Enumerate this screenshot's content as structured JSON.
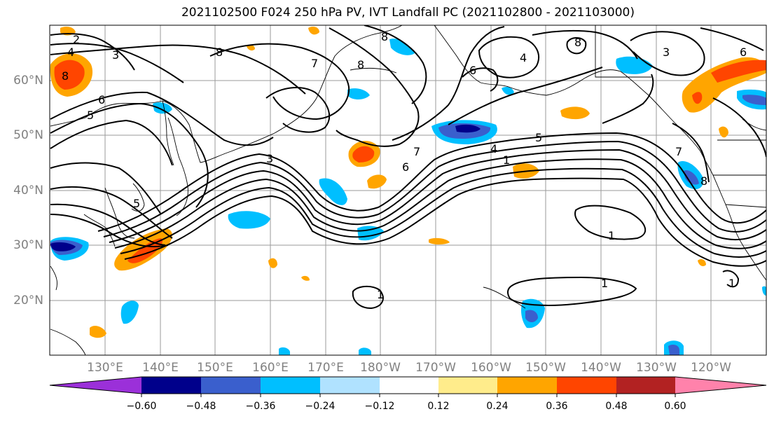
{
  "title": "2021102500 F024 250 hPa PV, IVT Landfall PC (2021102800 - 2021103000)",
  "map": {
    "lat_labels": [
      "60°N",
      "50°N",
      "40°N",
      "30°N",
      "20°N"
    ],
    "lon_labels": [
      "130°E",
      "140°E",
      "150°E",
      "160°E",
      "170°E",
      "180°W",
      "170°W",
      "160°W",
      "150°W",
      "140°W",
      "130°W",
      "120°W"
    ],
    "contour_labels": [
      "2",
      "3",
      "8",
      "7",
      "4",
      "6",
      "5",
      "1"
    ]
  },
  "colorbar": {
    "colors": [
      "#9b30d9",
      "#00008b",
      "#3a5fcd",
      "#00bfff",
      "#b0e2ff",
      "#ffffff",
      "#ffec8b",
      "#ffa500",
      "#ff4500",
      "#b22222",
      "#ff82ab"
    ],
    "ticks": [
      "−0.60",
      "−0.48",
      "−0.36",
      "−0.24",
      "−0.12",
      "0.12",
      "0.24",
      "0.36",
      "0.48",
      "0.60"
    ]
  }
}
